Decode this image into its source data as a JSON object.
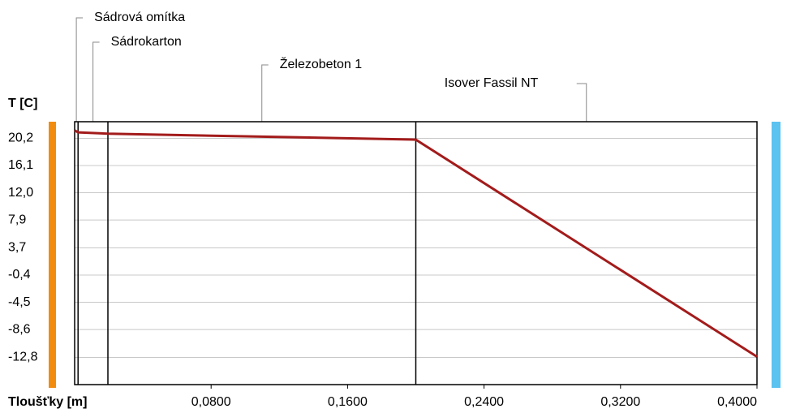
{
  "chart_data": {
    "type": "line",
    "ylabel": "T [C]",
    "xlabel": "Tloušťky [m]",
    "x": [
      0,
      0.002,
      0.0195,
      0.2,
      0.4
    ],
    "series": [
      {
        "color": "#a31b1b",
        "values": [
          21.4,
          21.1,
          20.9,
          20.0,
          -12.7
        ]
      }
    ],
    "xlim": [
      0,
      0.4
    ],
    "ylim": [
      -16.9,
      22.7
    ],
    "xticks": [
      {
        "value": 0.08,
        "label": "0,0800"
      },
      {
        "value": 0.16,
        "label": "0,1600"
      },
      {
        "value": 0.24,
        "label": "0,2400"
      },
      {
        "value": 0.32,
        "label": "0,3200"
      },
      {
        "value": 0.4,
        "label": "0,4000"
      }
    ],
    "yticks": [
      {
        "value": 20.2,
        "label": "20,2"
      },
      {
        "value": 16.1,
        "label": "16,1"
      },
      {
        "value": 12.0,
        "label": "12,0"
      },
      {
        "value": 7.9,
        "label": "7,9"
      },
      {
        "value": 3.7,
        "label": "3,7"
      },
      {
        "value": -0.4,
        "label": "-0,4"
      },
      {
        "value": -4.5,
        "label": "-4,5"
      },
      {
        "value": -8.6,
        "label": "-8,6"
      },
      {
        "value": -12.8,
        "label": "-12,8"
      }
    ],
    "grid": true,
    "layers": [
      {
        "name": "Sádrová omítka",
        "end": 0.002
      },
      {
        "name": "Sádrokarton",
        "end": 0.0195
      },
      {
        "name": "Železobeton 1",
        "end": 0.2
      },
      {
        "name": "Isover Fassil NT",
        "end": 0.4
      }
    ],
    "interior_color": "#f28c0f",
    "exterior_color": "#5cc2f0"
  }
}
